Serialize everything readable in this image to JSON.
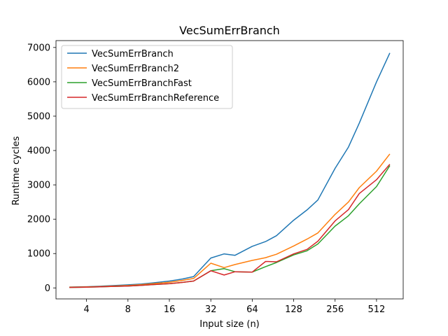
{
  "chart_data": {
    "type": "line",
    "title": "VecSumErrBranch",
    "xlabel": "Input size (n)",
    "ylabel": "Runtime cycles",
    "x_scale": "log2",
    "x": [
      3,
      4,
      5,
      6,
      8,
      10,
      12,
      16,
      20,
      24,
      32,
      40,
      48,
      64,
      80,
      96,
      128,
      160,
      192,
      256,
      320,
      384,
      512,
      640
    ],
    "xticks": [
      4,
      8,
      16,
      32,
      64,
      128,
      256,
      512
    ],
    "xtick_labels": [
      "4",
      "8",
      "16",
      "32",
      "64",
      "128",
      "256",
      "512"
    ],
    "yticks": [
      0,
      1000,
      2000,
      3000,
      4000,
      5000,
      6000,
      7000
    ],
    "ytick_labels": [
      "0",
      "1000",
      "2000",
      "3000",
      "4000",
      "5000",
      "6000",
      "7000"
    ],
    "ylim": [
      -320,
      7200
    ],
    "xlim": [
      2.4,
      800
    ],
    "grid": false,
    "legend_position": "top-left",
    "series": [
      {
        "name": "VecSumErrBranch",
        "color": "#1f77b4",
        "x": [
          3,
          4,
          5,
          6,
          8,
          10,
          12,
          16,
          20,
          24,
          32,
          40,
          48,
          64,
          80,
          96,
          128,
          160,
          192,
          256,
          320,
          384,
          512,
          640
        ],
        "values": [
          25,
          35,
          48,
          65,
          90,
          115,
          145,
          200,
          260,
          330,
          870,
          990,
          950,
          1210,
          1350,
          1520,
          1970,
          2270,
          2560,
          3480,
          4100,
          4800,
          6000,
          6840
        ]
      },
      {
        "name": "VecSumErrBranch2",
        "color": "#ff7f0e",
        "x": [
          3,
          4,
          5,
          6,
          8,
          10,
          12,
          16,
          20,
          24,
          32,
          40,
          48,
          64,
          80,
          96,
          128,
          160,
          192,
          256,
          320,
          384,
          512,
          640
        ],
        "values": [
          20,
          28,
          38,
          52,
          70,
          95,
          120,
          165,
          220,
          275,
          720,
          590,
          680,
          800,
          880,
          980,
          1220,
          1420,
          1600,
          2140,
          2500,
          2920,
          3400,
          3900
        ]
      },
      {
        "name": "VecSumErrBranchFast",
        "color": "#2ca02c",
        "x": [
          3,
          4,
          5,
          6,
          8,
          10,
          12,
          16,
          20,
          24,
          32,
          40,
          48,
          64,
          80,
          96,
          128,
          160,
          192,
          256,
          320,
          384,
          512,
          640
        ],
        "values": [
          15,
          22,
          30,
          40,
          55,
          75,
          95,
          125,
          160,
          200,
          500,
          560,
          470,
          460,
          620,
          740,
          960,
          1080,
          1280,
          1800,
          2100,
          2450,
          2950,
          3560
        ]
      },
      {
        "name": "VecSumErrBranchReference",
        "color": "#d62728",
        "x": [
          3,
          4,
          5,
          6,
          8,
          10,
          12,
          16,
          20,
          24,
          32,
          40,
          48,
          64,
          80,
          96,
          128,
          160,
          192,
          256,
          320,
          384,
          512,
          640
        ],
        "values": [
          15,
          22,
          30,
          40,
          55,
          75,
          95,
          125,
          160,
          200,
          500,
          375,
          470,
          460,
          770,
          760,
          990,
          1120,
          1360,
          1950,
          2280,
          2750,
          3150,
          3600
        ]
      }
    ]
  }
}
